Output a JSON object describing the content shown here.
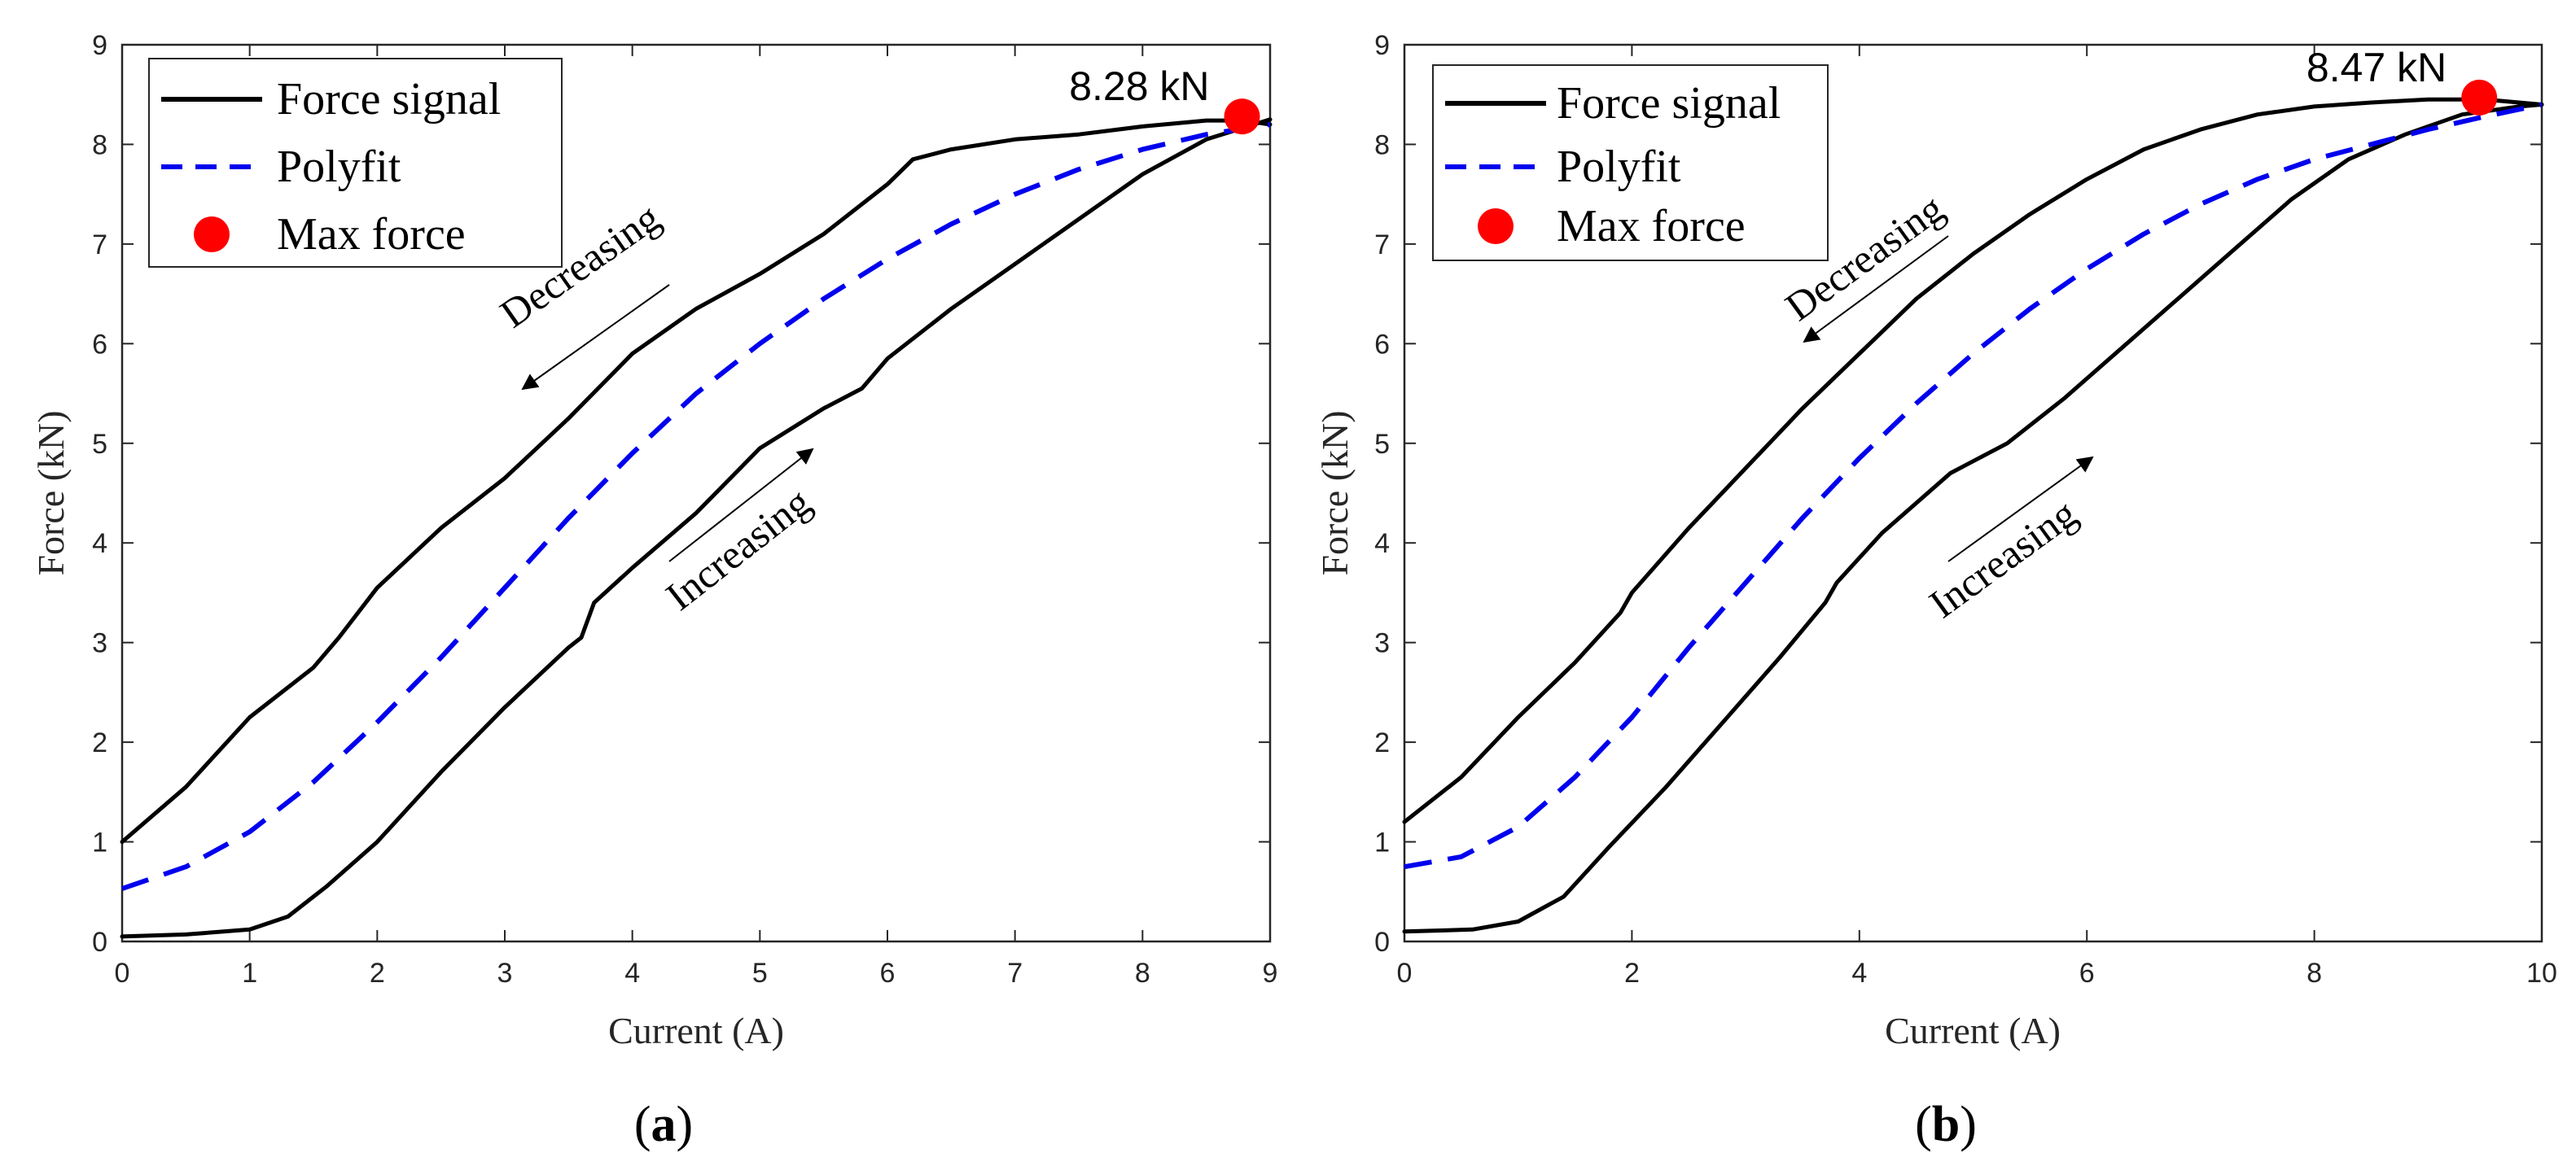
{
  "colors": {
    "force_signal": "#000000",
    "polyfit": "#0000ee",
    "max_force": "#ff0000",
    "axis": "#262626"
  },
  "chart_data": [
    {
      "type": "line",
      "panel_label": "a",
      "xlabel": "Current (A)",
      "ylabel": "Force (kN)",
      "xlim": [
        0,
        9
      ],
      "ylim": [
        0,
        9
      ],
      "xticks": [
        0,
        1,
        2,
        3,
        4,
        5,
        6,
        7,
        8,
        9
      ],
      "yticks": [
        0,
        1,
        2,
        3,
        4,
        5,
        6,
        7,
        8,
        9
      ],
      "legend": {
        "position": "top-left",
        "entries": [
          "Force signal",
          "Polyfit",
          "Max force"
        ]
      },
      "series": [
        {
          "name": "Force signal (increasing)",
          "style": "solid",
          "x": [
            0,
            0.5,
            1.0,
            1.3,
            1.6,
            2.0,
            2.5,
            3.0,
            3.5,
            3.6,
            3.7,
            4.0,
            4.5,
            5.0,
            5.5,
            5.8,
            6.0,
            6.5,
            7.0,
            7.5,
            8.0,
            8.5,
            9.0
          ],
          "y": [
            0.05,
            0.07,
            0.12,
            0.25,
            0.55,
            1.0,
            1.7,
            2.35,
            2.95,
            3.05,
            3.4,
            3.75,
            4.3,
            4.95,
            5.35,
            5.55,
            5.85,
            6.35,
            6.8,
            7.25,
            7.7,
            8.05,
            8.25
          ]
        },
        {
          "name": "Force signal (decreasing)",
          "style": "solid",
          "x": [
            9.0,
            8.8,
            8.5,
            8.0,
            7.5,
            7.0,
            6.5,
            6.2,
            6.0,
            5.5,
            5.0,
            4.5,
            4.0,
            3.5,
            3.0,
            2.5,
            2.0,
            1.7,
            1.5,
            1.0,
            0.5,
            0
          ],
          "y": [
            8.2,
            8.24,
            8.24,
            8.18,
            8.1,
            8.05,
            7.95,
            7.85,
            7.6,
            7.1,
            6.7,
            6.35,
            5.9,
            5.25,
            4.65,
            4.15,
            3.55,
            3.05,
            2.75,
            2.25,
            1.55,
            1.0
          ]
        },
        {
          "name": "Polyfit",
          "style": "dashed",
          "x": [
            0,
            0.5,
            1.0,
            1.5,
            2.0,
            2.5,
            3.0,
            3.5,
            4.0,
            4.5,
            5.0,
            5.5,
            6.0,
            6.5,
            7.0,
            7.5,
            8.0,
            8.5,
            9.0
          ],
          "y": [
            0.53,
            0.75,
            1.1,
            1.6,
            2.2,
            2.85,
            3.55,
            4.25,
            4.9,
            5.5,
            6.0,
            6.45,
            6.85,
            7.2,
            7.5,
            7.75,
            7.95,
            8.1,
            8.2
          ]
        }
      ],
      "max_force": {
        "x": 8.78,
        "y": 8.28,
        "label": "8.28 kN"
      },
      "annotations": [
        {
          "text": "Decreasing",
          "arrow": "toward lower-left"
        },
        {
          "text": "Increasing",
          "arrow": "toward upper-right"
        }
      ]
    },
    {
      "type": "line",
      "panel_label": "b",
      "xlabel": "Current (A)",
      "ylabel": "Force (kN)",
      "xlim": [
        0,
        10
      ],
      "ylim": [
        0,
        9
      ],
      "xticks": [
        0,
        2,
        4,
        6,
        8,
        10
      ],
      "yticks": [
        0,
        1,
        2,
        3,
        4,
        5,
        6,
        7,
        8,
        9
      ],
      "legend": {
        "position": "top-left",
        "entries": [
          "Force signal",
          "Polyfit",
          "Max force"
        ]
      },
      "series": [
        {
          "name": "Force signal (increasing)",
          "style": "solid",
          "x": [
            0,
            0.6,
            1.0,
            1.4,
            1.8,
            2.3,
            2.8,
            3.3,
            3.7,
            3.8,
            4.2,
            4.8,
            5.3,
            5.8,
            6.3,
            6.8,
            7.3,
            7.8,
            8.3,
            8.8,
            9.3,
            9.8,
            10.0
          ],
          "y": [
            0.1,
            0.12,
            0.2,
            0.45,
            0.95,
            1.55,
            2.2,
            2.85,
            3.4,
            3.6,
            4.1,
            4.7,
            5.0,
            5.45,
            5.95,
            6.45,
            6.95,
            7.45,
            7.85,
            8.1,
            8.3,
            8.38,
            8.4
          ]
        },
        {
          "name": "Force signal (decreasing)",
          "style": "solid",
          "x": [
            10.0,
            9.5,
            9.0,
            8.5,
            8.0,
            7.5,
            7.0,
            6.5,
            6.0,
            5.5,
            5.0,
            4.5,
            4.0,
            3.5,
            3.0,
            2.5,
            2.0,
            1.9,
            1.5,
            1.0,
            0.5,
            0
          ],
          "y": [
            8.4,
            8.45,
            8.45,
            8.42,
            8.38,
            8.3,
            8.15,
            7.95,
            7.65,
            7.3,
            6.9,
            6.45,
            5.9,
            5.35,
            4.75,
            4.15,
            3.5,
            3.3,
            2.8,
            2.25,
            1.65,
            1.2
          ]
        },
        {
          "name": "Polyfit",
          "style": "dashed",
          "x": [
            0,
            0.5,
            1.0,
            1.5,
            2.0,
            2.5,
            3.0,
            3.5,
            4.0,
            4.5,
            5.0,
            5.5,
            6.0,
            6.5,
            7.0,
            7.5,
            8.0,
            8.5,
            9.0,
            9.5,
            10.0
          ],
          "y": [
            0.75,
            0.85,
            1.15,
            1.65,
            2.25,
            2.95,
            3.6,
            4.25,
            4.85,
            5.4,
            5.9,
            6.35,
            6.75,
            7.1,
            7.4,
            7.65,
            7.85,
            8.0,
            8.15,
            8.28,
            8.4
          ]
        }
      ],
      "max_force": {
        "x": 9.45,
        "y": 8.47,
        "label": "8.47 kN"
      },
      "annotations": [
        {
          "text": "Decreasing",
          "arrow": "toward lower-left"
        },
        {
          "text": "Increasing",
          "arrow": "toward upper-right"
        }
      ]
    }
  ]
}
